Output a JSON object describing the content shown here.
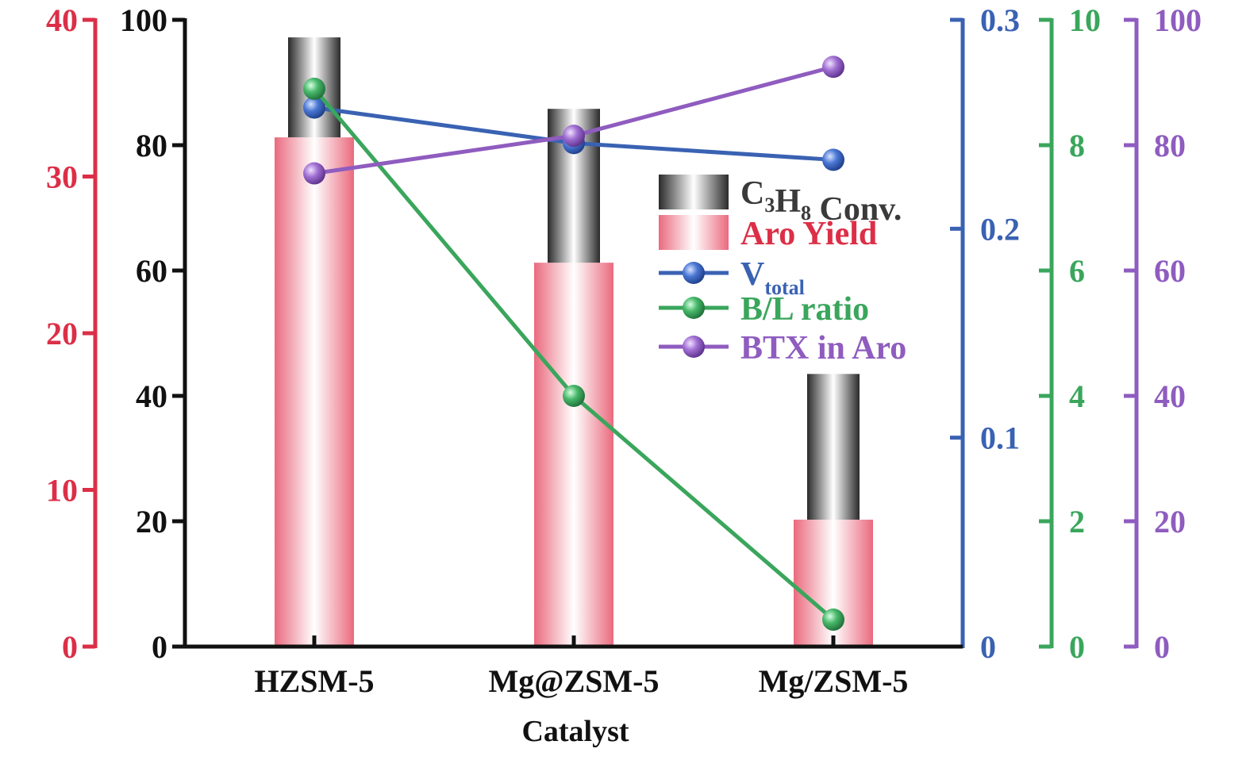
{
  "chart_data": {
    "type": "bar",
    "xlabel": "Catalyst",
    "categories": [
      "HZSM-5",
      "Mg@ZSM-5",
      "Mg/ZSM-5"
    ],
    "bar_series": [
      {
        "name": "C3H8 Conv.",
        "label_main": "C",
        "label_sub1": "3",
        "label_mid": "H",
        "label_sub2": "8",
        "label_tail": " Conv.",
        "axis": "left_black",
        "values": [
          97.2,
          85.8,
          43.5
        ],
        "color": "#222222"
      },
      {
        "name": "Aro Yield",
        "label_main": "Aro Yield",
        "axis": "left_red",
        "values": [
          32.5,
          24.5,
          8.1
        ],
        "color": "#e9687d"
      }
    ],
    "line_series": [
      {
        "name": "Vtotal",
        "label_main": "V",
        "label_sub": "total",
        "axis": "right_blue",
        "values": [
          0.258,
          0.241,
          0.233
        ],
        "color": "#3a62b3"
      },
      {
        "name": "B/L ratio",
        "label_main": "B/L ratio",
        "axis": "right_green",
        "values": [
          8.9,
          4.0,
          0.43
        ],
        "color": "#3aa65c"
      },
      {
        "name": "BTX in Aro",
        "label_main": "BTX in Aro",
        "axis": "right_purple",
        "values": [
          75.5,
          81.5,
          92.5
        ],
        "color": "#8f5cbf"
      }
    ],
    "axes": {
      "left_red": {
        "ylim": [
          0,
          40
        ],
        "ticks": [
          "0",
          "10",
          "20",
          "30",
          "40"
        ],
        "color": "#dc2f47"
      },
      "left_black": {
        "ylim": [
          0,
          100
        ],
        "ticks": [
          "0",
          "20",
          "40",
          "60",
          "80",
          "100"
        ],
        "color": "#111111"
      },
      "right_blue": {
        "ylim": [
          0,
          0.3
        ],
        "ticks": [
          "0",
          "0.1",
          "0.2",
          "0.3"
        ],
        "color": "#3a62b3"
      },
      "right_green": {
        "ylim": [
          0,
          10
        ],
        "ticks": [
          "0",
          "2",
          "4",
          "6",
          "8",
          "10"
        ],
        "color": "#3aa65c"
      },
      "right_purple": {
        "ylim": [
          0,
          100
        ],
        "ticks": [
          "0",
          "20",
          "40",
          "60",
          "80",
          "100"
        ],
        "color": "#8f5cbf"
      }
    },
    "legend": "upper-right inside plot",
    "grid": false
  }
}
